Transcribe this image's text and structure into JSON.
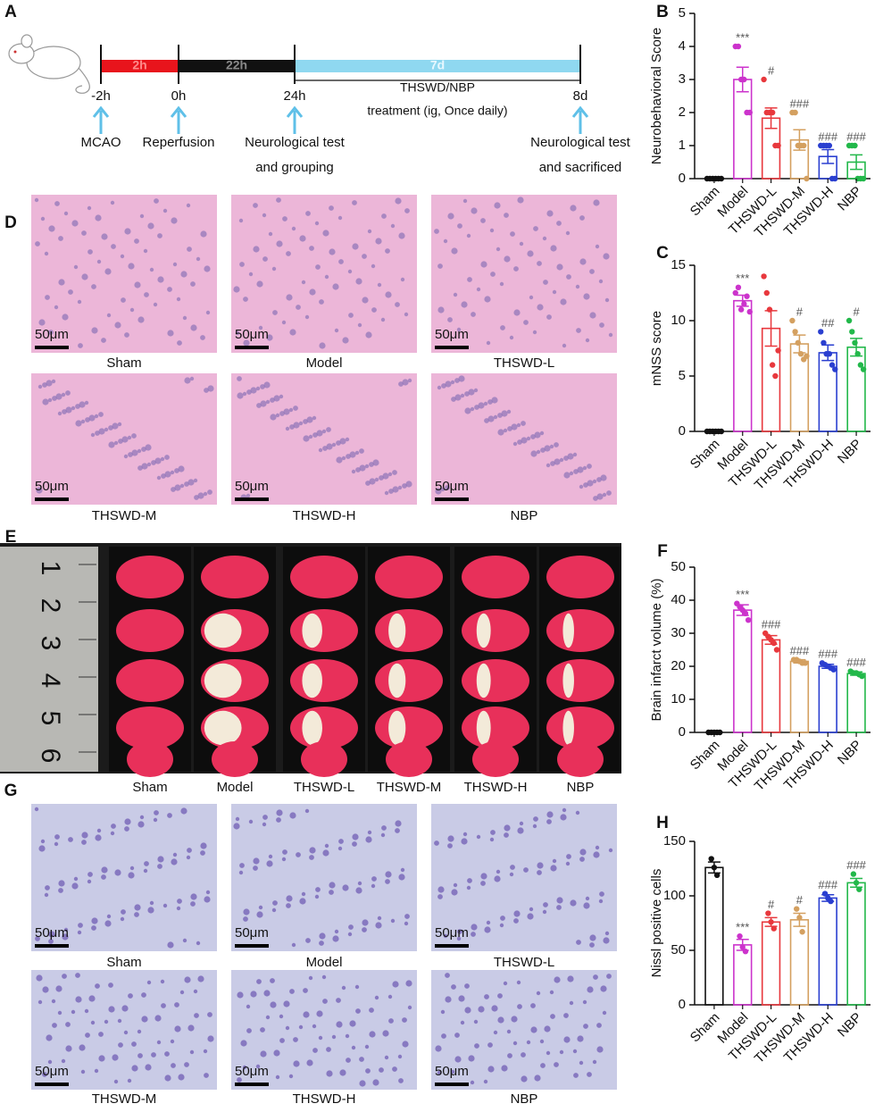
{
  "panel_labels": [
    "A",
    "B",
    "C",
    "D",
    "E",
    "F",
    "G",
    "H"
  ],
  "timeline": {
    "segments": [
      {
        "label": "2h",
        "color": "#e8141c",
        "text_color": "#ff8a8a"
      },
      {
        "label": "22h",
        "color": "#111111",
        "text_color": "#888888"
      },
      {
        "label": "7d",
        "color": "#8fd8f0",
        "text_color": "#e8f8ff"
      }
    ],
    "times": [
      "-2h",
      "0h",
      "24h",
      "8d"
    ],
    "events": [
      [
        "MCAO"
      ],
      [
        "Reperfusion"
      ],
      [
        "Neurological test",
        "and grouping"
      ],
      [
        "Neurological test",
        "and sacrificed"
      ]
    ],
    "treatment": "THSWD/NBP",
    "treatment_detail": "treatment (ig, Once daily)"
  },
  "he_images": [
    {
      "caption": "Sham",
      "scale": "50μm"
    },
    {
      "caption": "Model",
      "scale": "50μm"
    },
    {
      "caption": "THSWD-L",
      "scale": "50μm"
    },
    {
      "caption": "THSWD-M",
      "scale": "50μm"
    },
    {
      "caption": "THSWD-H",
      "scale": "50μm"
    },
    {
      "caption": "NBP",
      "scale": "50μm"
    }
  ],
  "ttc": {
    "ruler": [
      "1",
      "2",
      "3",
      "4",
      "5",
      "6"
    ],
    "captions": [
      "Sham",
      "Model",
      "THSWD-L",
      "THSWD-M",
      "THSWD-H",
      "NBP"
    ]
  },
  "nissl_images": [
    {
      "caption": "Sham",
      "scale": "50μm"
    },
    {
      "caption": "Model",
      "scale": "50μm"
    },
    {
      "caption": "THSWD-L",
      "scale": "50μm"
    },
    {
      "caption": "THSWD-M",
      "scale": "50μm"
    },
    {
      "caption": "THSWD-H",
      "scale": "50μm"
    },
    {
      "caption": "NBP",
      "scale": "50μm"
    }
  ],
  "chart_data": [
    {
      "type": "bar",
      "ylabel": "Neurobehavioral Score",
      "categories": [
        "Sham",
        "Model",
        "THSWD-L",
        "THSWD-M",
        "THSWD-H",
        "NBP"
      ],
      "colors": [
        "#111111",
        "#cc33cc",
        "#e8383d",
        "#d4a060",
        "#2a3fd0",
        "#22b84a"
      ],
      "values": [
        0,
        3,
        1.83,
        1.17,
        0.67,
        0.5
      ],
      "errors": [
        0,
        0.37,
        0.31,
        0.31,
        0.21,
        0.22
      ],
      "points": [
        [
          0,
          0,
          0,
          0,
          0,
          0
        ],
        [
          4,
          4,
          3,
          3,
          2,
          2
        ],
        [
          3,
          2,
          2,
          2,
          1,
          1
        ],
        [
          2,
          2,
          1,
          1,
          1,
          0
        ],
        [
          1,
          1,
          1,
          1,
          0,
          0
        ],
        [
          1,
          1,
          1,
          0,
          0,
          0
        ]
      ],
      "annotations": [
        null,
        "***",
        "#",
        "###",
        "###",
        "###"
      ],
      "ylim": [
        0,
        5
      ],
      "yticks": [
        0,
        1,
        2,
        3,
        4,
        5
      ]
    },
    {
      "type": "bar",
      "ylabel": "mNSS score",
      "categories": [
        "Sham",
        "Model",
        "THSWD-L",
        "THSWD-M",
        "THSWD-H",
        "NBP"
      ],
      "colors": [
        "#111111",
        "#cc33cc",
        "#e8383d",
        "#d4a060",
        "#2a3fd0",
        "#22b84a"
      ],
      "values": [
        0,
        11.8,
        9.3,
        7.9,
        7.1,
        7.6
      ],
      "errors": [
        0,
        0.5,
        1.6,
        0.8,
        0.7,
        0.8
      ],
      "points": [
        [
          0,
          0,
          0,
          0,
          0,
          0
        ],
        [
          12.5,
          13,
          11,
          11.5,
          12.2,
          10.8
        ],
        [
          14,
          12.5,
          11,
          6,
          5,
          7.3
        ],
        [
          10,
          9,
          8,
          7,
          6.5,
          6.8
        ],
        [
          9,
          8,
          7,
          7,
          6,
          5.6
        ],
        [
          10,
          9,
          8,
          7,
          6,
          5.6
        ]
      ],
      "annotations": [
        null,
        "***",
        null,
        "#",
        "##",
        "#"
      ],
      "ylim": [
        0,
        15
      ],
      "yticks": [
        0,
        5,
        10,
        15
      ]
    },
    {
      "type": "bar",
      "ylabel": "Brain infarct volume (%)",
      "categories": [
        "Sham",
        "Model",
        "THSWD-L",
        "THSWD-M",
        "THSWD-H",
        "NBP"
      ],
      "colors": [
        "#111111",
        "#cc33cc",
        "#e8383d",
        "#d4a060",
        "#2a3fd0",
        "#22b84a"
      ],
      "values": [
        0,
        37,
        28,
        21.5,
        20,
        17.8
      ],
      "errors": [
        0,
        1.6,
        1.3,
        0.5,
        0.6,
        0.5
      ],
      "points": [
        [
          0,
          0,
          0,
          0,
          0
        ],
        [
          39,
          38,
          37,
          36,
          34
        ],
        [
          30,
          29,
          28,
          27,
          25
        ],
        [
          22,
          22,
          21.5,
          21,
          21
        ],
        [
          21,
          20.5,
          20,
          19.5,
          19
        ],
        [
          18.5,
          18,
          18,
          17.5,
          17
        ]
      ],
      "annotations": [
        null,
        "***",
        "###",
        "###",
        "###",
        "###"
      ],
      "ylim": [
        0,
        50
      ],
      "yticks": [
        0,
        10,
        20,
        30,
        40,
        50
      ]
    },
    {
      "type": "bar",
      "ylabel": "Nissl positive cells",
      "categories": [
        "Sham",
        "Model",
        "THSWD-L",
        "THSWD-M",
        "THSWD-H",
        "NBP"
      ],
      "colors": [
        "#111111",
        "#cc33cc",
        "#e8383d",
        "#d4a060",
        "#2a3fd0",
        "#22b84a"
      ],
      "values": [
        126,
        55,
        76,
        78,
        98,
        112
      ],
      "errors": [
        5,
        5,
        4,
        6,
        3,
        4
      ],
      "points": [
        [
          134,
          126,
          119
        ],
        [
          63,
          53,
          49
        ],
        [
          84,
          76,
          70
        ],
        [
          88,
          80,
          67
        ],
        [
          102,
          98,
          95
        ],
        [
          120,
          112,
          106
        ]
      ],
      "annotations": [
        null,
        "***",
        "#",
        "#",
        "###",
        "###"
      ],
      "ylim": [
        0,
        150
      ],
      "yticks": [
        0,
        50,
        100,
        150
      ]
    }
  ]
}
